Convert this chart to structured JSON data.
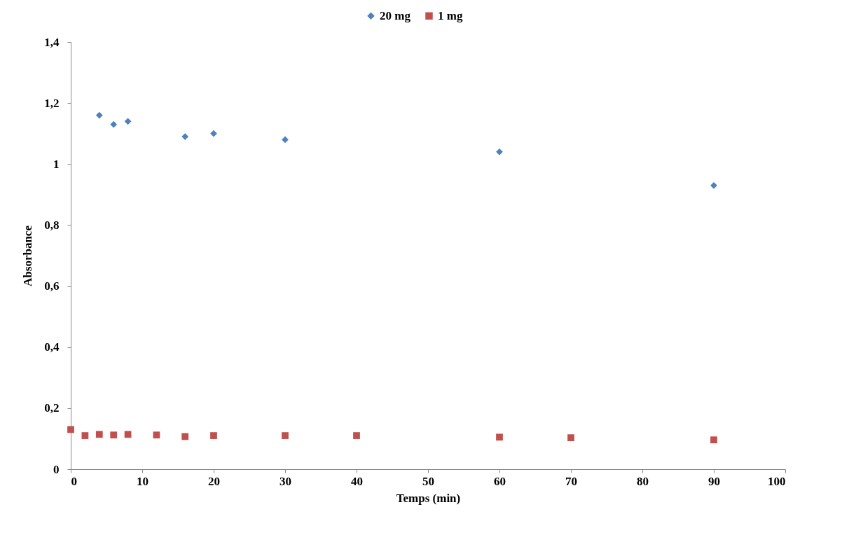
{
  "chart_data": {
    "type": "scatter",
    "xlabel": "Temps (min)",
    "ylabel": "Absorbance",
    "xlim": [
      0,
      100
    ],
    "xticks": [
      0,
      10,
      20,
      30,
      40,
      50,
      60,
      70,
      80,
      90,
      100
    ],
    "ylim": [
      0,
      1.4
    ],
    "yticks": [
      0,
      {
        "value": 0.2,
        "label": "0,2"
      },
      {
        "value": 0.4,
        "label": "0,4"
      },
      {
        "value": 0.6,
        "label": "0,6"
      },
      {
        "value": 0.8,
        "label": "0,8"
      },
      1,
      {
        "value": 1.2,
        "label": "1,2"
      },
      {
        "value": 1.4,
        "label": "1,4"
      }
    ],
    "grid": false,
    "legend": "top",
    "series": [
      {
        "name": "20 mg",
        "color": "#4f81bd",
        "marker": "diamond",
        "x": [
          4,
          6,
          8,
          16,
          20,
          30,
          60,
          90
        ],
        "values": [
          1.16,
          1.13,
          1.14,
          1.09,
          1.1,
          1.08,
          1.04,
          0.93
        ]
      },
      {
        "name": "1 mg",
        "color": "#c0504d",
        "marker": "square",
        "x": [
          0,
          2,
          4,
          6,
          8,
          12,
          16,
          20,
          30,
          40,
          60,
          70,
          90
        ],
        "values": [
          0.13,
          0.11,
          0.114,
          0.112,
          0.114,
          0.112,
          0.107,
          0.11,
          0.11,
          0.11,
          0.105,
          0.103,
          0.096
        ]
      }
    ]
  }
}
